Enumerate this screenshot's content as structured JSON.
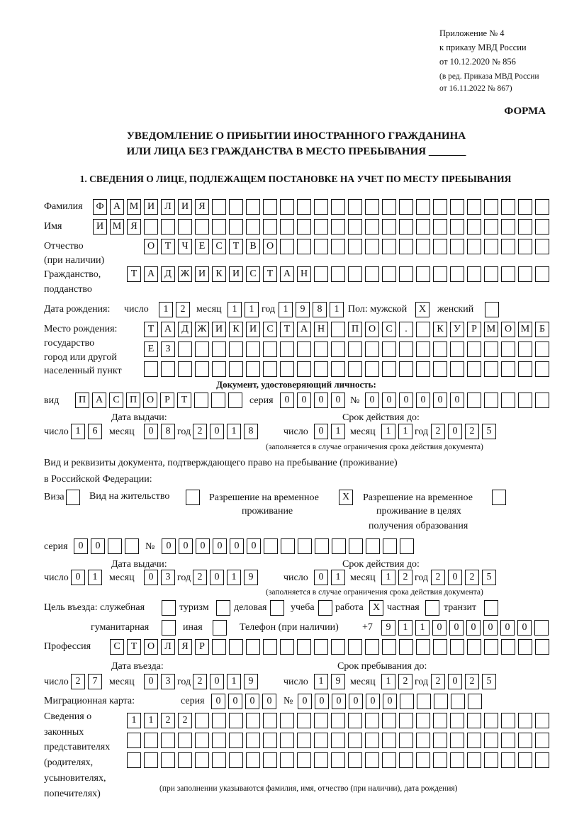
{
  "header": {
    "appendix": "Приложение № 4",
    "order": "к приказу МВД России",
    "order_date": "от 10.12.2020 № 856",
    "revision_1": "(в ред. Приказа МВД России",
    "revision_2": "от 16.11.2022 № 867)",
    "form_label": "ФОРМА",
    "title_1": "УВЕДОМЛЕНИЕ О ПРИБЫТИИ ИНОСТРАННОГО ГРАЖДАНИНА",
    "title_2": "ИЛИ ЛИЦА БЕЗ ГРАЖДАНСТВА В МЕСТО ПРЕБЫВАНИЯ _______",
    "section_1": "1. СВЕДЕНИЯ О ЛИЦЕ, ПОДЛЕЖАЩЕМ ПОСТАНОВКЕ НА УЧЕТ ПО МЕСТУ ПРЕБЫВАНИЯ"
  },
  "labels": {
    "surname": "Фамилия",
    "name": "Имя",
    "patronymic_1": "Отчество",
    "patronymic_2": "(при наличии)",
    "citizenship_1": "Гражданство,",
    "citizenship_2": "подданство",
    "birth_date": "Дата рождения:",
    "day": "число",
    "month": "месяц",
    "year": "год",
    "sex": "Пол: мужской",
    "female": "женский",
    "birthplace_1": "Место рождения:",
    "birthplace_2": "государство",
    "birthplace_3": "город или другой",
    "birthplace_4": "населенный пункт",
    "id_doc": "Документ, удостоверяющий личность:",
    "kind": "вид",
    "series": "серия",
    "number": "№",
    "issue_date": "Дата выдачи:",
    "valid_until": "Срок действия до:",
    "valid_note": "(заполняется в случае ограничения срока действия документа)",
    "stay_doc_1": "Вид и реквизиты документа, подтверждающего право на пребывание (проживание)",
    "stay_doc_2": "в Российской Федерации:",
    "visa": "Виза",
    "residence": "Вид на жительство",
    "temp_permit_1": "Разрешение на временное",
    "temp_permit_2": "проживание",
    "edu_permit_1": "Разрешение на временное",
    "edu_permit_2": "проживание в целях",
    "edu_permit_3": "получения образования",
    "purpose": "Цель въезда: служебная",
    "tourism": "туризм",
    "business": "деловая",
    "study": "учеба",
    "work": "работа",
    "private": "частная",
    "transit": "транзит",
    "humanitarian": "гуманитарная",
    "other": "иная",
    "phone": "Телефон (при наличии)",
    "phone_prefix": "+7",
    "profession": "Профессия",
    "entry_date": "Дата въезда:",
    "stay_until": "Срок пребывания до:",
    "migration_card": "Миграционная карта:",
    "reps_1": "Сведения о",
    "reps_2": "законных",
    "reps_3": "представителях",
    "reps_4": "(родителях,",
    "reps_5": "усыновителях,",
    "reps_6": "попечителях)",
    "reps_note": "(при заполнении указываются фамилия, имя, отчество (при наличии), дата рождения)"
  },
  "person": {
    "surname": "ФАМИЛИЯ",
    "name": "ИМЯ",
    "patronymic": "ОТЧЕСТВО",
    "citizenship": "ТАДЖИКИСТАН",
    "birth_day": "12",
    "birth_month": "11",
    "birth_year": "1981",
    "sex_male": "X",
    "sex_female": "",
    "birthplace_1": "ТАДЖИКИСТАН ПОС. КУРМОМБ",
    "birthplace_2": "ЕЗ",
    "birthplace_3": "",
    "doc_kind": "ПАСПОРТ",
    "doc_series": "0000",
    "doc_number": "000000",
    "doc_issue_day": "16",
    "doc_issue_month": "08",
    "doc_issue_year": "2018",
    "doc_valid_day": "01",
    "doc_valid_month": "11",
    "doc_valid_year": "2025",
    "visa": "",
    "residence": "",
    "temp_permit": "X",
    "edu_permit": "",
    "stay_series": "00",
    "stay_number": "000000",
    "stay_issue_day": "01",
    "stay_issue_month": "03",
    "stay_issue_year": "2019",
    "stay_valid_day": "01",
    "stay_valid_month": "12",
    "stay_valid_year": "2025",
    "purpose_official": "",
    "purpose_tourism": "",
    "purpose_business": "",
    "purpose_study": "",
    "purpose_work": "X",
    "purpose_private": "",
    "purpose_transit": "",
    "purpose_humanitarian": "",
    "purpose_other": "",
    "phone": "911000000",
    "profession": "СТОЛЯР",
    "entry_day": "27",
    "entry_month": "03",
    "entry_year": "2019",
    "stay_day": "19",
    "stay_month": "12",
    "stay_year": "2025",
    "card_series": "0000",
    "card_number": "000000",
    "reps_1": "1122",
    "reps_2": "",
    "reps_3": ""
  }
}
